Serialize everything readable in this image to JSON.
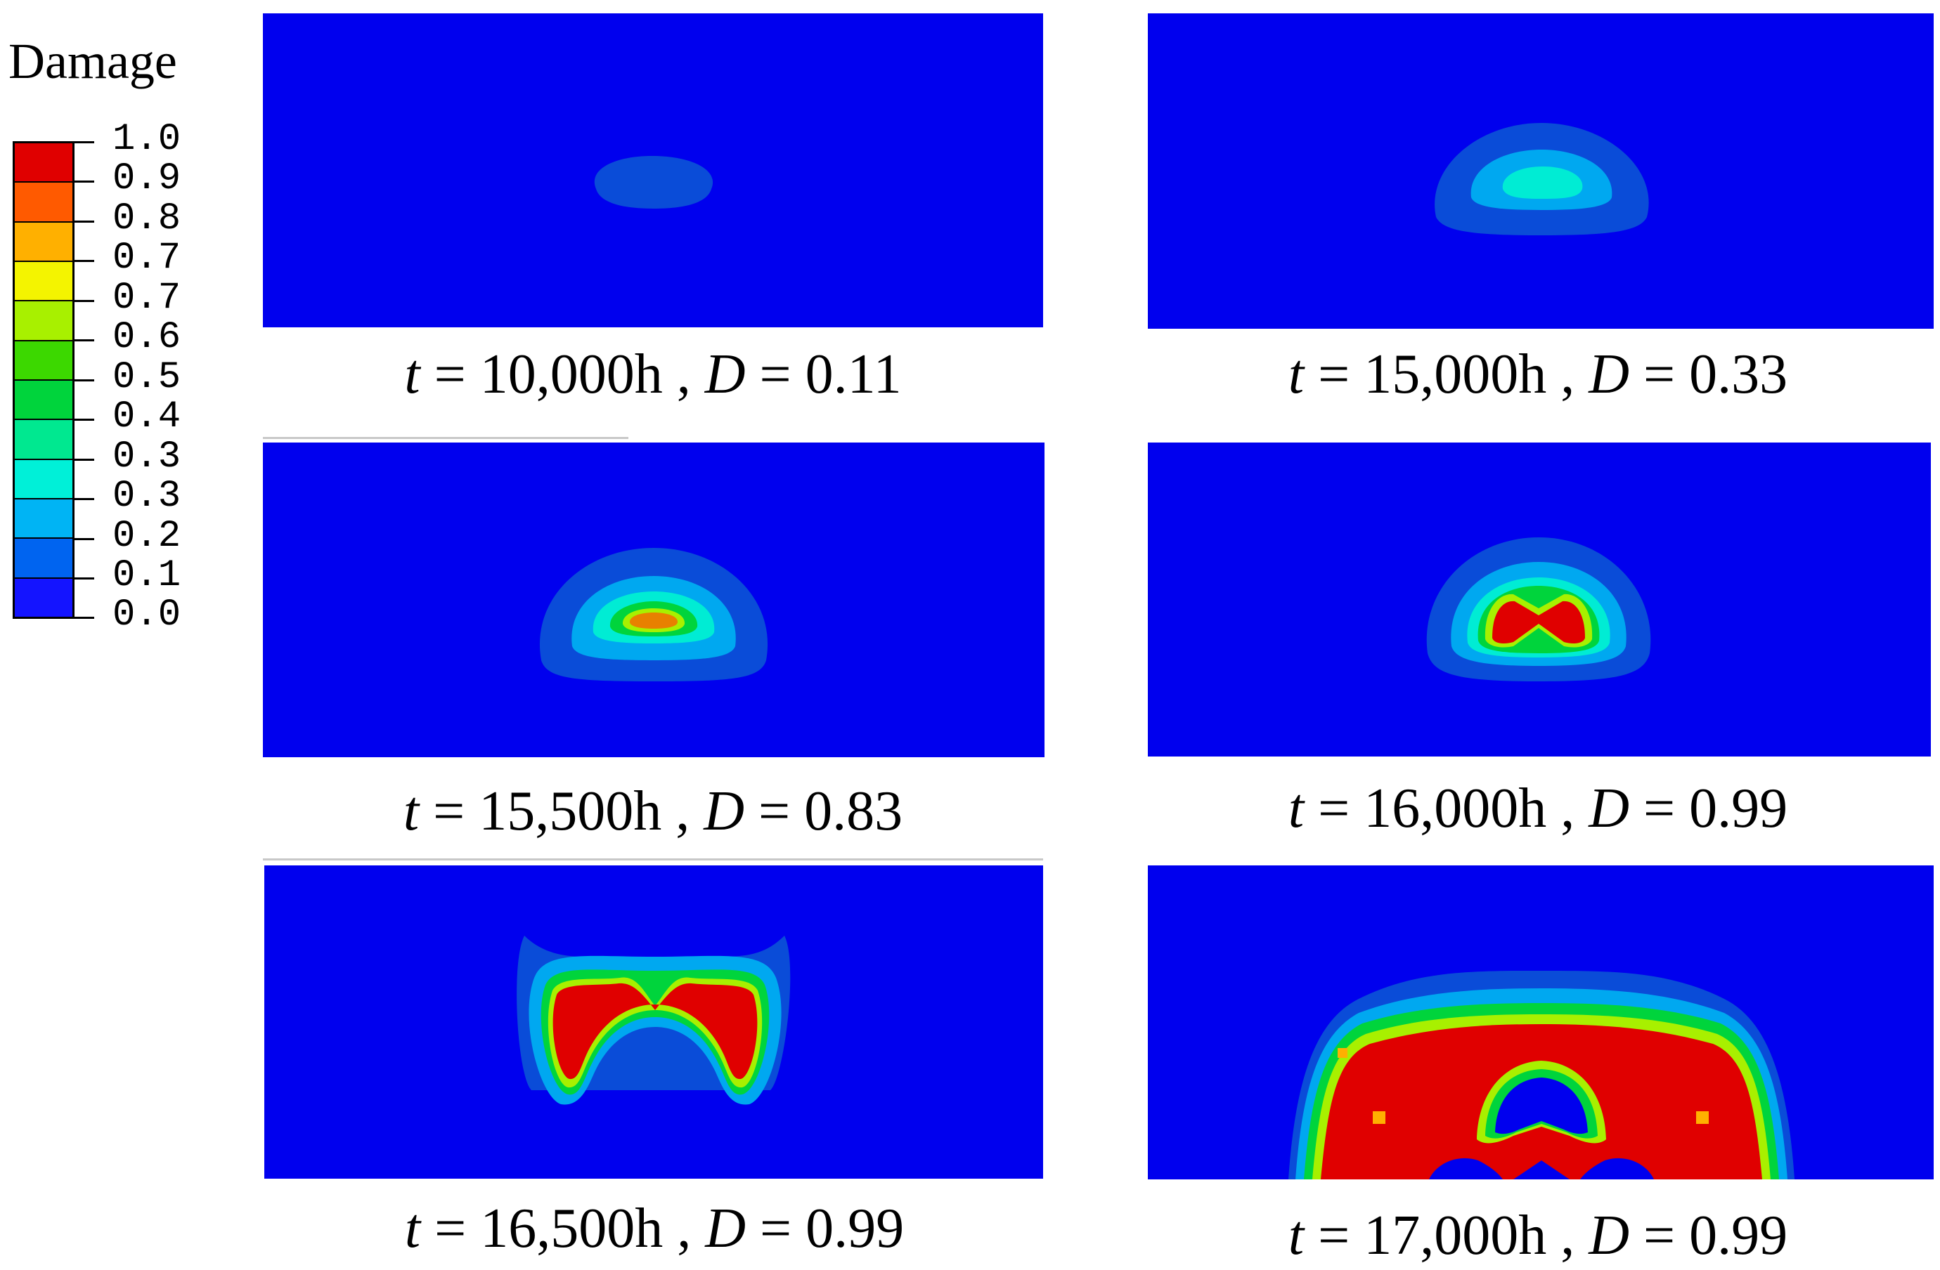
{
  "legend": {
    "title": "Damage",
    "labels": [
      "1.0",
      "0.9",
      "0.8",
      "0.7",
      "0.7",
      "0.6",
      "0.5",
      "0.4",
      "0.3",
      "0.3",
      "0.2",
      "0.1",
      "0.0"
    ],
    "colors_top_to_bottom": [
      "#e00000",
      "#ff5a00",
      "#ffb000",
      "#f4f400",
      "#a8f000",
      "#3cd800",
      "#00d43c",
      "#00e890",
      "#00f0d8",
      "#00b4f4",
      "#0064f0",
      "#1414ff"
    ]
  },
  "panels": [
    {
      "t_var": "t",
      "t_value": "= 10,000h ,",
      "d_var": "D",
      "d_value": "= 0.11"
    },
    {
      "t_var": "t",
      "t_value": "= 15,000h ,",
      "d_var": "D",
      "d_value": "= 0.33"
    },
    {
      "t_var": "t",
      "t_value": "= 15,500h ,",
      "d_var": "D",
      "d_value": "= 0.83"
    },
    {
      "t_var": "t",
      "t_value": "= 16,000h ,",
      "d_var": "D",
      "d_value": "= 0.99"
    },
    {
      "t_var": "t",
      "t_value": "= 16,500h ,",
      "d_var": "D",
      "d_value": "= 0.99"
    },
    {
      "t_var": "t",
      "t_value": "= 17,000h ,",
      "d_var": "D",
      "d_value": "= 0.99"
    }
  ]
}
